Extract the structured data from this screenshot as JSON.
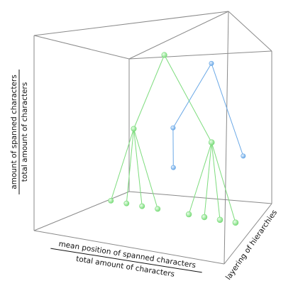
{
  "chart_data": {
    "type": "scatter",
    "subtype": "3d-tree",
    "title": "",
    "axes": {
      "x": {
        "numerator": "mean position of spanned characters",
        "denominator": "total amount of characters"
      },
      "y": {
        "numerator": "amount of spanned characters",
        "denominator": "total amount of characters"
      },
      "z": {
        "label": "layering of hierarchies"
      }
    },
    "grid": false,
    "legend": "none",
    "colors": {
      "green_series": "#7ddc7d",
      "blue_series": "#6aa8e6",
      "box": "#8a8a8a"
    },
    "series": [
      {
        "color_key": "green_series",
        "nodes": [
          {
            "id": "g0",
            "parent": null,
            "x": 0.45,
            "y": 1.0,
            "layer": 0
          },
          {
            "id": "g1",
            "parent": "g0",
            "x": 0.25,
            "y": 0.5,
            "layer": 0
          },
          {
            "id": "g2",
            "parent": "g0",
            "x": 0.75,
            "y": 0.5,
            "layer": 0
          },
          {
            "id": "g3",
            "parent": "g1",
            "x": 0.1,
            "y": 0.02,
            "layer": 0
          },
          {
            "id": "g4",
            "parent": "g1",
            "x": 0.2,
            "y": 0.02,
            "layer": 0
          },
          {
            "id": "g5",
            "parent": "g1",
            "x": 0.3,
            "y": 0.02,
            "layer": 0
          },
          {
            "id": "g6",
            "parent": "g1",
            "x": 0.4,
            "y": 0.02,
            "layer": 0
          },
          {
            "id": "g7",
            "parent": "g2",
            "x": 0.6,
            "y": 0.02,
            "layer": 0
          },
          {
            "id": "g8",
            "parent": "g2",
            "x": 0.7,
            "y": 0.02,
            "layer": 0
          },
          {
            "id": "g9",
            "parent": "g2",
            "x": 0.8,
            "y": 0.02,
            "layer": 0
          },
          {
            "id": "g10",
            "parent": "g2",
            "x": 0.9,
            "y": 0.02,
            "layer": 0
          }
        ]
      },
      {
        "color_key": "blue_series",
        "nodes": [
          {
            "id": "b0",
            "parent": null,
            "x": 0.55,
            "y": 1.0,
            "layer": 1
          },
          {
            "id": "b1",
            "parent": "b0",
            "x": 0.3,
            "y": 0.55,
            "layer": 1
          },
          {
            "id": "b2",
            "parent": "b1",
            "x": 0.3,
            "y": 0.3,
            "layer": 1
          },
          {
            "id": "b3",
            "parent": "b0",
            "x": 0.75,
            "y": 0.45,
            "layer": 1
          }
        ]
      }
    ]
  }
}
